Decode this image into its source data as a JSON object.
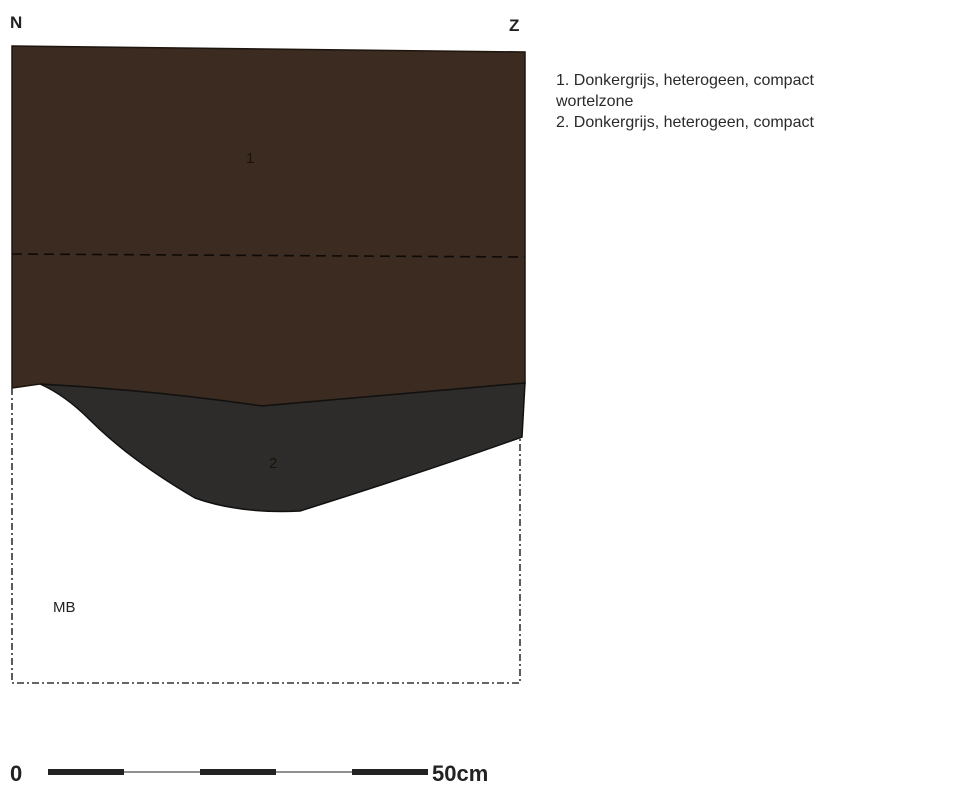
{
  "orientation": {
    "left": "N",
    "right": "Z"
  },
  "layers": [
    {
      "label": "1",
      "color": "#3b2b20"
    },
    {
      "label": "2",
      "color": "#2e2c2a"
    }
  ],
  "natural_subsoil": {
    "label": "MB"
  },
  "legend": {
    "items": [
      {
        "line1": "1. Donkergrijs, heterogeen, compact",
        "line2": "wortelzone"
      },
      {
        "line1": "2. Donkergrijs, heterogeen, compact",
        "line2": ""
      }
    ]
  },
  "scale_bar": {
    "start_label": "0",
    "end_label": "50cm",
    "segments": 5
  }
}
